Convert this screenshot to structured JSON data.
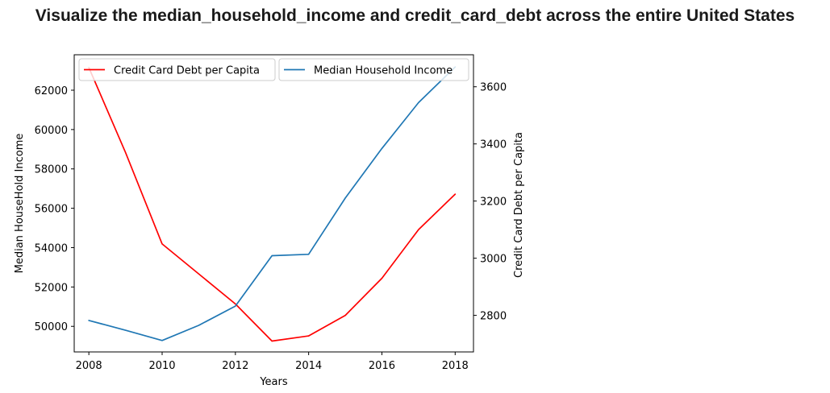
{
  "chart_data": {
    "type": "line",
    "title": "Visualize the median_household_income and credit_card_debt across the entire United States",
    "xlabel": "Years",
    "ylabel_left": "Median HouseHold Income",
    "ylabel_right": "Credit Card Debt per Capita",
    "x": [
      2008,
      2009,
      2010,
      2011,
      2012,
      2013,
      2014,
      2015,
      2016,
      2017,
      2018
    ],
    "xlim": [
      2007.6,
      2018.5
    ],
    "ylim_left": [
      48700,
      63800
    ],
    "ylim_right": [
      2672,
      3712
    ],
    "xticks": [
      "2008",
      "2010",
      "2012",
      "2014",
      "2016",
      "2018"
    ],
    "yticks_left": [
      "50000",
      "52000",
      "54000",
      "56000",
      "58000",
      "60000",
      "62000"
    ],
    "yticks_right": [
      "2800",
      "3000",
      "3200",
      "3400",
      "3600"
    ],
    "series": [
      {
        "name": "Credit Card Debt per Capita",
        "axis": "right",
        "color": "#ff0000",
        "values": [
          3667,
          3370,
          3050,
          2945,
          2840,
          2710,
          2728,
          2800,
          2930,
          3100,
          3224
        ]
      },
      {
        "name": "Median Household Income",
        "axis": "left",
        "color": "#1f77b4",
        "values": [
          50300,
          49800,
          49280,
          50050,
          51030,
          53590,
          53660,
          56520,
          59040,
          61370,
          63180
        ]
      }
    ],
    "legend": "top-left",
    "grid": false
  }
}
